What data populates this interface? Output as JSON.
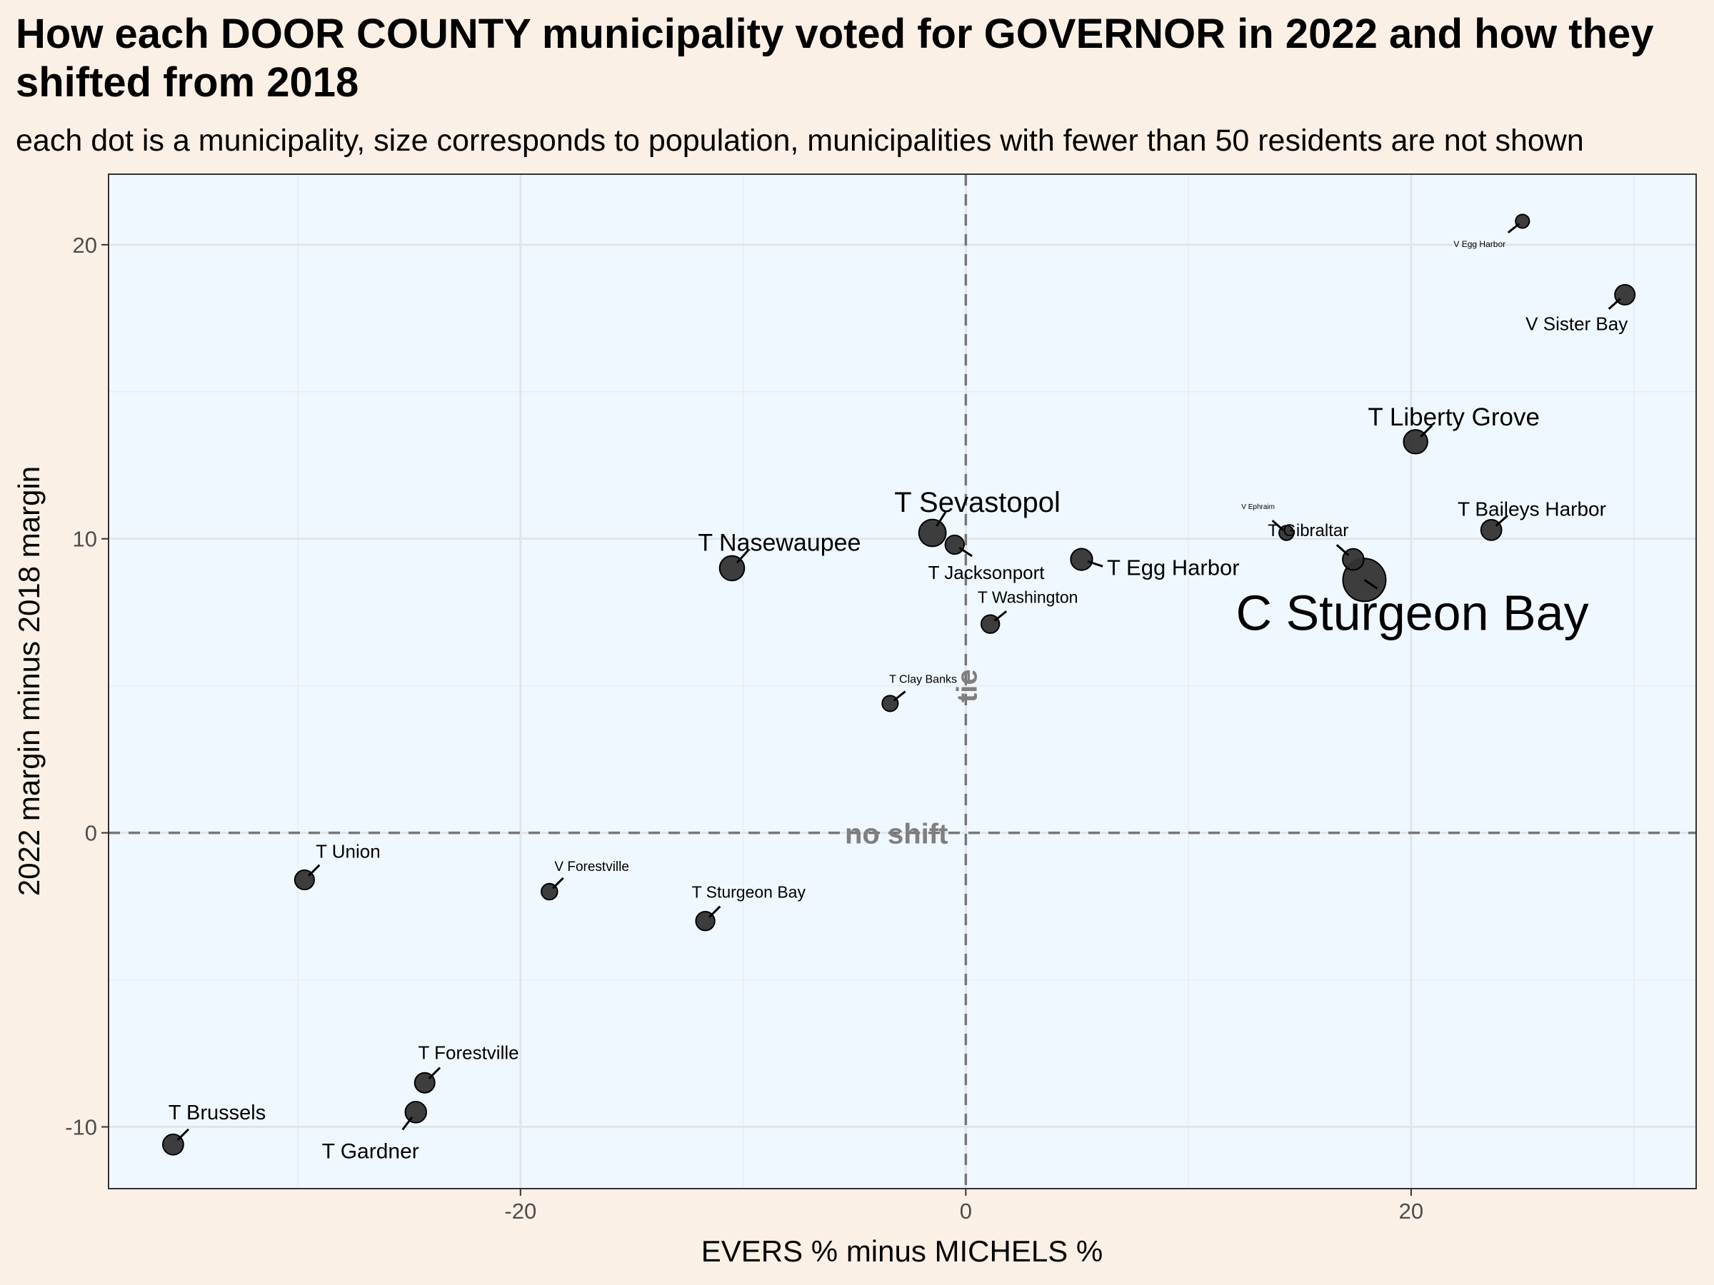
{
  "chart_data": {
    "type": "scatter",
    "title": "How each DOOR COUNTY municipality voted for GOVERNOR in 2022 and how they shifted from 2018",
    "subtitle": "each dot is a municipality, size corresponds to population, municipalities with fewer than 50 residents are not shown",
    "xlabel": "EVERS % minus MICHELS %",
    "ylabel": "2022 margin minus 2018 margin",
    "xlim": [
      -38.5,
      32.8
    ],
    "ylim": [
      -12.1,
      22.4
    ],
    "x_ticks": [
      "-20",
      "0",
      "20"
    ],
    "y_ticks": [
      "20",
      "10",
      "0",
      "-10"
    ],
    "grid": true,
    "reference_lines": [
      {
        "axis": "y",
        "value": 0,
        "label": "no shift"
      },
      {
        "axis": "x",
        "value": 0,
        "label": "tie"
      }
    ],
    "points": [
      {
        "name": "C Sturgeon Bay",
        "x": 17.9,
        "y": 8.6,
        "size": 9000
      },
      {
        "name": "T Sevastopol",
        "x": -1.5,
        "y": 10.2,
        "size": 2600
      },
      {
        "name": "T Liberty Grove",
        "x": 20.2,
        "y": 13.3,
        "size": 1800
      },
      {
        "name": "T Nasewaupee",
        "x": -10.5,
        "y": 9.0,
        "size": 2000
      },
      {
        "name": "T Egg Harbor",
        "x": 5.2,
        "y": 9.3,
        "size": 1300
      },
      {
        "name": "T Baileys Harbor",
        "x": 23.6,
        "y": 10.3,
        "size": 1100
      },
      {
        "name": "V Sister Bay",
        "x": 29.6,
        "y": 18.3,
        "size": 1000
      },
      {
        "name": "T Gibraltar",
        "x": 17.4,
        "y": 9.3,
        "size": 1200
      },
      {
        "name": "T Jacksonport",
        "x": -0.5,
        "y": 9.8,
        "size": 800
      },
      {
        "name": "T Washington",
        "x": 1.1,
        "y": 7.1,
        "size": 700
      },
      {
        "name": "T Clay Banks",
        "x": -3.4,
        "y": 4.4,
        "size": 400
      },
      {
        "name": "V Egg Harbor",
        "x": 25.0,
        "y": 20.8,
        "size": 200
      },
      {
        "name": "V Ephraim",
        "x": 14.4,
        "y": 10.2,
        "size": 280
      },
      {
        "name": "T Union",
        "x": -29.7,
        "y": -1.6,
        "size": 900
      },
      {
        "name": "V Forestville",
        "x": -18.7,
        "y": -2.0,
        "size": 430
      },
      {
        "name": "T Sturgeon Bay",
        "x": -11.7,
        "y": -3.0,
        "size": 800
      },
      {
        "name": "T Forestville",
        "x": -24.3,
        "y": -8.5,
        "size": 1000
      },
      {
        "name": "T Gardner",
        "x": -24.7,
        "y": -9.5,
        "size": 1200
      },
      {
        "name": "T Brussels",
        "x": -35.6,
        "y": -10.6,
        "size": 1100
      }
    ]
  }
}
